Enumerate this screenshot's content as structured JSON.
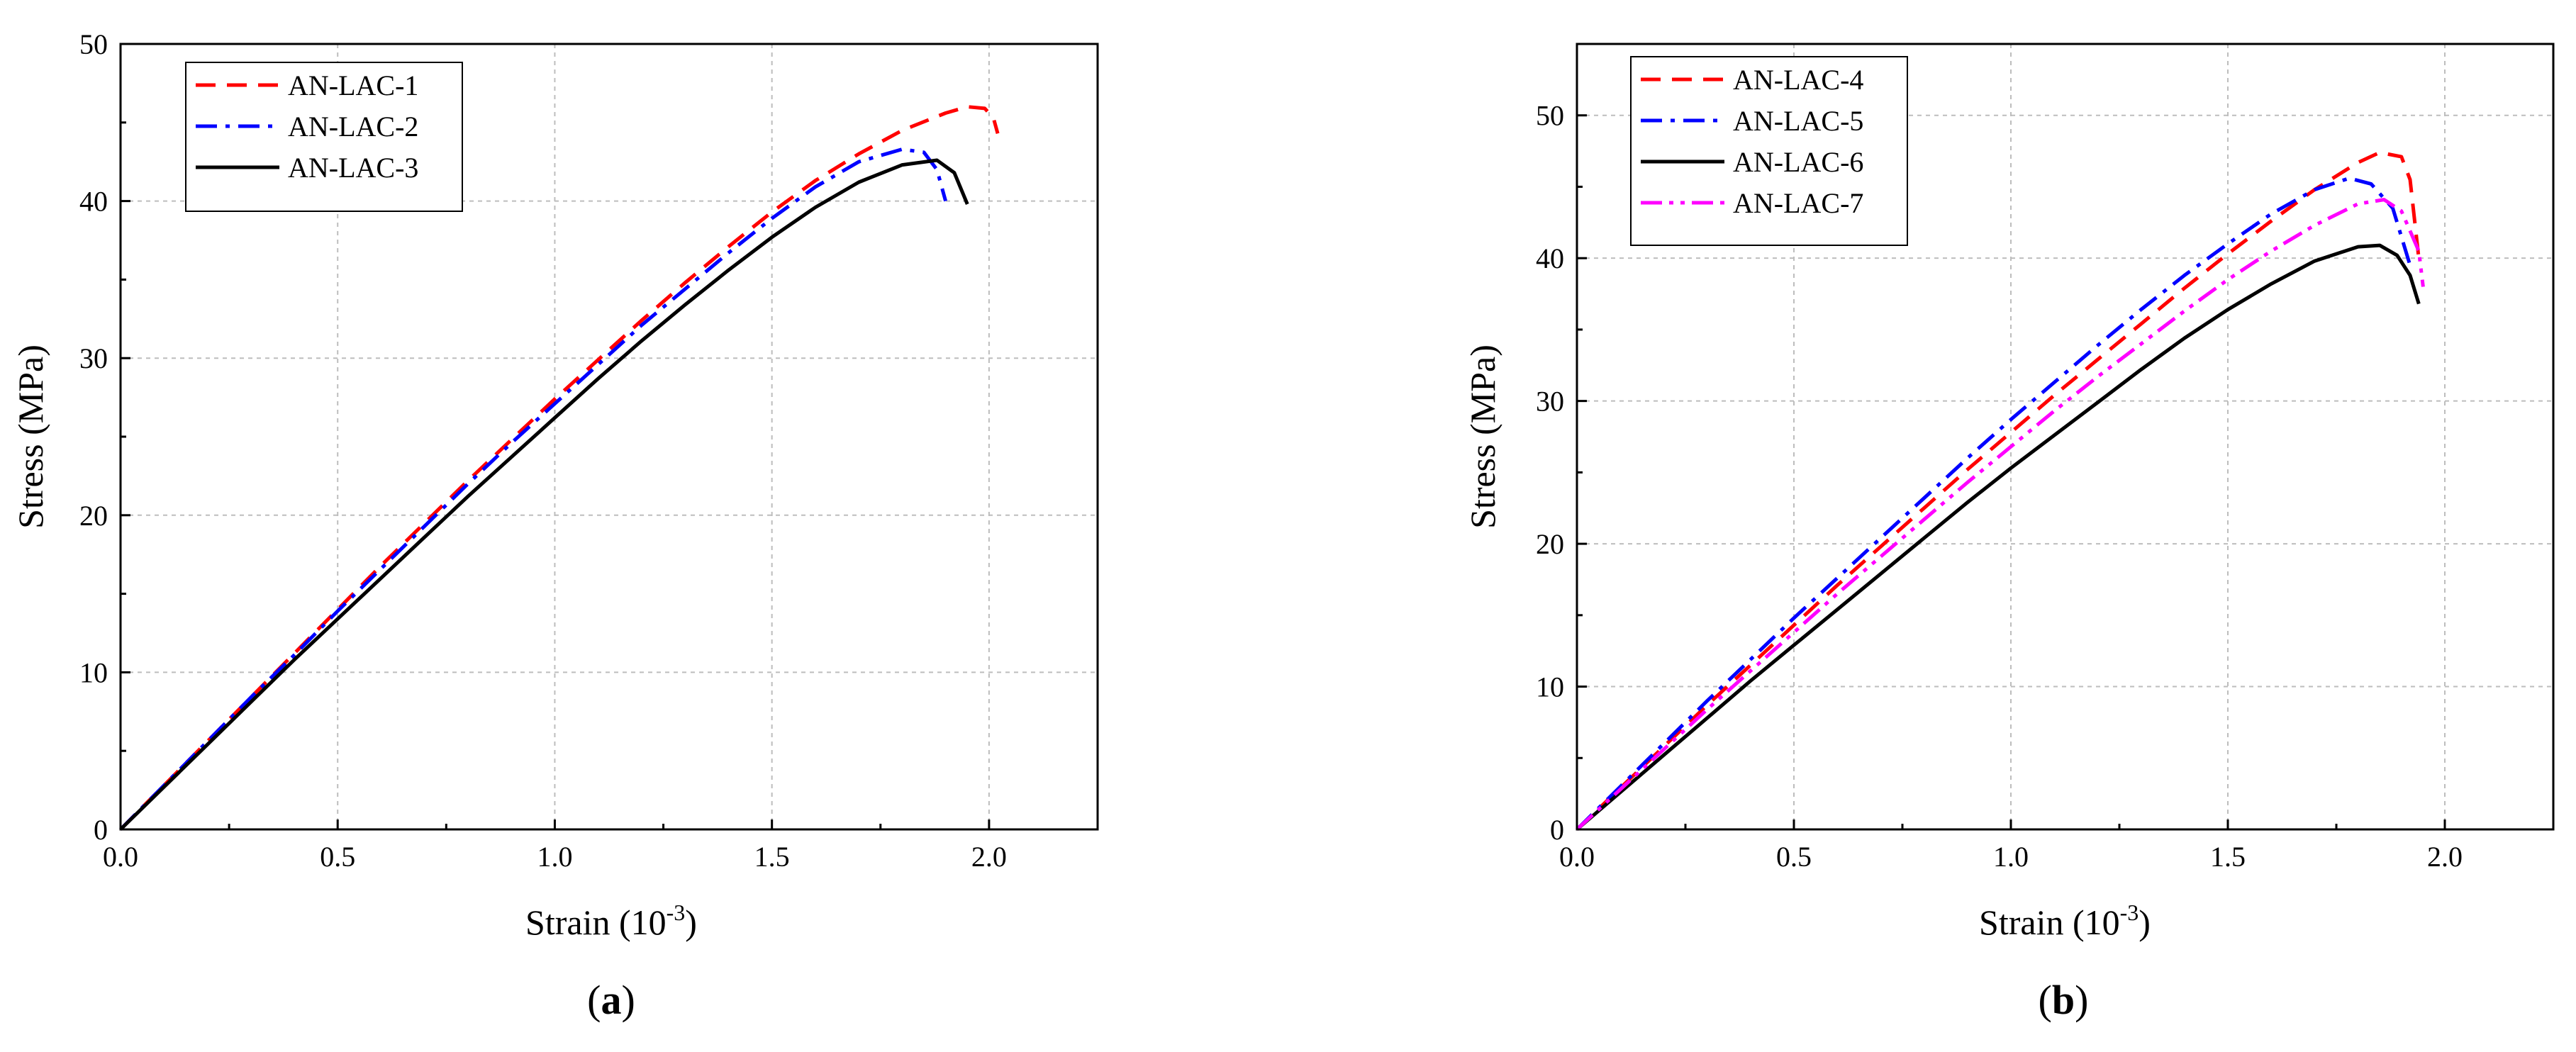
{
  "chart_data": [
    {
      "type": "line",
      "panel_label": "a",
      "xlabel": "Strain (10",
      "xlabel_exponent": "-3",
      "xlabel_suffix": ")",
      "ylabel": "Stress (MPa)",
      "xlim": [
        0.0,
        2.25
      ],
      "ylim": [
        0,
        50
      ],
      "xticks": [
        0.0,
        0.5,
        1.0,
        1.5,
        2.0
      ],
      "xtick_labels": [
        "0.0",
        "0.5",
        "1.0",
        "1.5",
        "2.0"
      ],
      "yticks": [
        0,
        10,
        20,
        30,
        40,
        50
      ],
      "ytick_labels": [
        "0",
        "10",
        "20",
        "30",
        "40",
        "50"
      ],
      "grid": true,
      "legend_position": "top-left",
      "series": [
        {
          "name": "AN-LAC-1",
          "color": "#ff0000",
          "style": "dash",
          "x": [
            0,
            0.1,
            0.2,
            0.3,
            0.4,
            0.5,
            0.6,
            0.7,
            0.8,
            0.9,
            1.0,
            1.1,
            1.2,
            1.3,
            1.4,
            1.5,
            1.6,
            1.7,
            1.8,
            1.9,
            1.95,
            1.99,
            2.01,
            2.02
          ],
          "y": [
            0,
            2.8,
            5.6,
            8.4,
            11.2,
            14.0,
            16.8,
            19.5,
            22.2,
            24.8,
            27.4,
            29.9,
            32.4,
            34.8,
            37.1,
            39.3,
            41.3,
            43.0,
            44.5,
            45.6,
            46.0,
            45.9,
            45.3,
            44.3
          ]
        },
        {
          "name": "AN-LAC-2",
          "color": "#0000ff",
          "style": "dashdot",
          "x": [
            0,
            0.1,
            0.2,
            0.3,
            0.4,
            0.5,
            0.6,
            0.7,
            0.8,
            0.9,
            1.0,
            1.1,
            1.2,
            1.3,
            1.4,
            1.5,
            1.6,
            1.7,
            1.8,
            1.85,
            1.88,
            1.9
          ],
          "y": [
            0,
            2.8,
            5.6,
            8.4,
            11.1,
            13.9,
            16.6,
            19.3,
            22.0,
            24.6,
            27.1,
            29.6,
            32.1,
            34.4,
            36.7,
            38.9,
            40.9,
            42.5,
            43.3,
            43.1,
            42.0,
            40.0
          ]
        },
        {
          "name": "AN-LAC-3",
          "color": "#000000",
          "style": "solid",
          "x": [
            0,
            0.1,
            0.2,
            0.3,
            0.4,
            0.5,
            0.6,
            0.7,
            0.8,
            0.9,
            1.0,
            1.1,
            1.2,
            1.3,
            1.4,
            1.5,
            1.6,
            1.7,
            1.8,
            1.88,
            1.92,
            1.95
          ],
          "y": [
            0,
            2.7,
            5.4,
            8.1,
            10.8,
            13.4,
            16.0,
            18.6,
            21.2,
            23.7,
            26.2,
            28.7,
            31.1,
            33.4,
            35.6,
            37.7,
            39.6,
            41.2,
            42.3,
            42.6,
            41.8,
            39.8
          ]
        }
      ]
    },
    {
      "type": "line",
      "panel_label": "b",
      "xlabel": "Strain (10",
      "xlabel_exponent": "-3",
      "xlabel_suffix": ")",
      "ylabel": "Stress (MPa)",
      "xlim": [
        0.0,
        2.25
      ],
      "ylim": [
        0,
        55
      ],
      "xticks": [
        0.0,
        0.5,
        1.0,
        1.5,
        2.0
      ],
      "xtick_labels": [
        "0.0",
        "0.5",
        "1.0",
        "1.5",
        "2.0"
      ],
      "yticks": [
        0,
        10,
        20,
        30,
        40,
        50
      ],
      "ytick_labels": [
        "0",
        "10",
        "20",
        "30",
        "40",
        "50"
      ],
      "grid": true,
      "legend_position": "top-left",
      "series": [
        {
          "name": "AN-LAC-4",
          "color": "#ff0000",
          "style": "dash",
          "x": [
            0,
            0.1,
            0.2,
            0.3,
            0.4,
            0.5,
            0.6,
            0.7,
            0.8,
            0.9,
            1.0,
            1.1,
            1.2,
            1.3,
            1.4,
            1.5,
            1.6,
            1.7,
            1.8,
            1.85,
            1.9,
            1.92,
            1.94
          ],
          "y": [
            0,
            2.9,
            5.8,
            8.7,
            11.5,
            14.3,
            17.1,
            19.8,
            22.5,
            25.2,
            27.8,
            30.4,
            32.9,
            35.4,
            37.9,
            40.3,
            42.6,
            44.8,
            46.7,
            47.4,
            47.1,
            45.5,
            40.0
          ]
        },
        {
          "name": "AN-LAC-5",
          "color": "#0000ff",
          "style": "dashdot",
          "x": [
            0,
            0.1,
            0.2,
            0.3,
            0.4,
            0.5,
            0.6,
            0.7,
            0.8,
            0.9,
            1.0,
            1.1,
            1.2,
            1.3,
            1.4,
            1.5,
            1.6,
            1.7,
            1.78,
            1.83,
            1.88,
            1.92
          ],
          "y": [
            0,
            3.0,
            6.0,
            9.0,
            11.9,
            14.8,
            17.6,
            20.4,
            23.2,
            26.0,
            28.7,
            31.3,
            33.9,
            36.4,
            38.8,
            41.0,
            43.1,
            44.8,
            45.6,
            45.2,
            43.5,
            39.5
          ]
        },
        {
          "name": "AN-LAC-6",
          "color": "#000000",
          "style": "solid",
          "x": [
            0,
            0.1,
            0.2,
            0.3,
            0.4,
            0.5,
            0.6,
            0.7,
            0.8,
            0.9,
            1.0,
            1.1,
            1.2,
            1.3,
            1.4,
            1.5,
            1.6,
            1.7,
            1.8,
            1.85,
            1.89,
            1.92,
            1.94
          ],
          "y": [
            0,
            2.6,
            5.2,
            7.8,
            10.4,
            12.9,
            15.4,
            17.9,
            20.4,
            22.9,
            25.3,
            27.6,
            29.9,
            32.2,
            34.4,
            36.4,
            38.2,
            39.8,
            40.8,
            40.9,
            40.2,
            38.8,
            36.8
          ]
        },
        {
          "name": "AN-LAC-7",
          "color": "#ff00ff",
          "style": "dashdotdot",
          "x": [
            0,
            0.1,
            0.2,
            0.3,
            0.4,
            0.5,
            0.6,
            0.7,
            0.8,
            0.9,
            1.0,
            1.1,
            1.2,
            1.3,
            1.4,
            1.5,
            1.6,
            1.7,
            1.8,
            1.86,
            1.9,
            1.94,
            1.95
          ],
          "y": [
            0,
            2.8,
            5.6,
            8.4,
            11.1,
            13.8,
            16.5,
            19.1,
            21.7,
            24.3,
            26.8,
            29.3,
            31.7,
            34.0,
            36.3,
            38.5,
            40.5,
            42.3,
            43.8,
            44.1,
            43.3,
            40.5,
            38.0
          ]
        }
      ]
    }
  ]
}
